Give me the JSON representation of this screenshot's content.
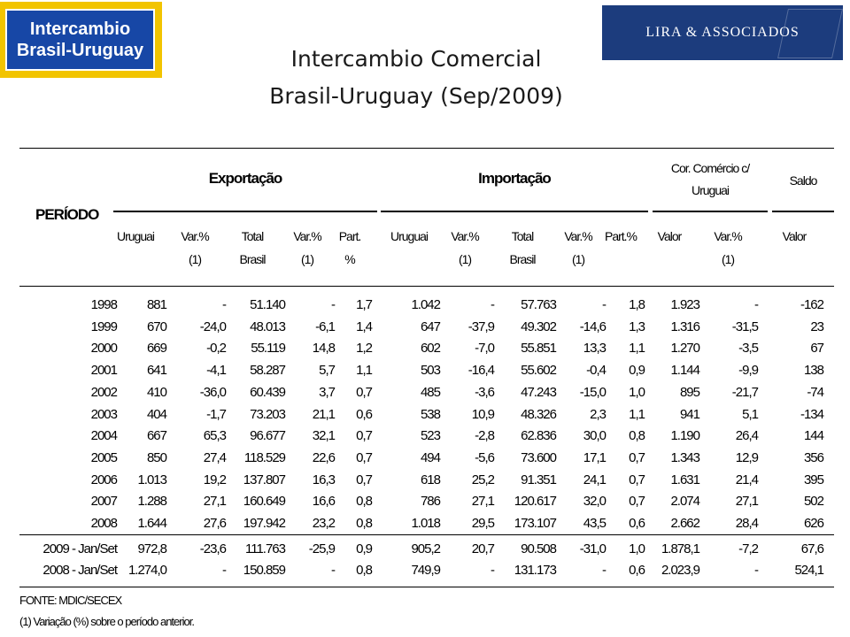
{
  "header": {
    "logo_left_line1": "Intercambio",
    "logo_left_line2": "Brasil-Uruguay",
    "logo_right": "LIRA & ASSOCIADOS",
    "title_line1": "Intercambio Comercial",
    "title_line2": "Brasil-Uruguay  (Sep/2009)"
  },
  "table": {
    "groups": {
      "periodo": "PERÍODO",
      "exportacao": "Exportação",
      "importacao": "Importação",
      "corrente_line1": "Cor. Comércio c/",
      "corrente_line2": "Uruguai",
      "saldo": "Saldo"
    },
    "subheaders": [
      [
        "Uruguai",
        ""
      ],
      [
        "Var.%",
        "(1)"
      ],
      [
        "Total",
        "Brasil"
      ],
      [
        "Var.%",
        "(1)"
      ],
      [
        "Part.",
        "%"
      ],
      [
        "Uruguai",
        ""
      ],
      [
        "Var.%",
        "(1)"
      ],
      [
        "Total",
        "Brasil"
      ],
      [
        "Var.%",
        "(1)"
      ],
      [
        "Part.%",
        ""
      ],
      [
        "Valor",
        ""
      ],
      [
        "Var.%",
        "(1)"
      ],
      [
        "Valor",
        ""
      ]
    ],
    "rows": [
      [
        "1998",
        "881",
        "-",
        "51.140",
        "-",
        "1,7",
        "1.042",
        "-",
        "57.763",
        "-",
        "1,8",
        "1.923",
        "-",
        "-162"
      ],
      [
        "1999",
        "670",
        "-24,0",
        "48.013",
        "-6,1",
        "1,4",
        "647",
        "-37,9",
        "49.302",
        "-14,6",
        "1,3",
        "1.316",
        "-31,5",
        "23"
      ],
      [
        "2000",
        "669",
        "-0,2",
        "55.119",
        "14,8",
        "1,2",
        "602",
        "-7,0",
        "55.851",
        "13,3",
        "1,1",
        "1.270",
        "-3,5",
        "67"
      ],
      [
        "2001",
        "641",
        "-4,1",
        "58.287",
        "5,7",
        "1,1",
        "503",
        "-16,4",
        "55.602",
        "-0,4",
        "0,9",
        "1.144",
        "-9,9",
        "138"
      ],
      [
        "2002",
        "410",
        "-36,0",
        "60.439",
        "3,7",
        "0,7",
        "485",
        "-3,6",
        "47.243",
        "-15,0",
        "1,0",
        "895",
        "-21,7",
        "-74"
      ],
      [
        "2003",
        "404",
        "-1,7",
        "73.203",
        "21,1",
        "0,6",
        "538",
        "10,9",
        "48.326",
        "2,3",
        "1,1",
        "941",
        "5,1",
        "-134"
      ],
      [
        "2004",
        "667",
        "65,3",
        "96.677",
        "32,1",
        "0,7",
        "523",
        "-2,8",
        "62.836",
        "30,0",
        "0,8",
        "1.190",
        "26,4",
        "144"
      ],
      [
        "2005",
        "850",
        "27,4",
        "118.529",
        "22,6",
        "0,7",
        "494",
        "-5,6",
        "73.600",
        "17,1",
        "0,7",
        "1.343",
        "12,9",
        "356"
      ],
      [
        "2006",
        "1.013",
        "19,2",
        "137.807",
        "16,3",
        "0,7",
        "618",
        "25,2",
        "91.351",
        "24,1",
        "0,7",
        "1.631",
        "21,4",
        "395"
      ],
      [
        "2007",
        "1.288",
        "27,1",
        "160.649",
        "16,6",
        "0,8",
        "786",
        "27,1",
        "120.617",
        "32,0",
        "0,7",
        "2.074",
        "27,1",
        "502"
      ],
      [
        "2008",
        "1.644",
        "27,6",
        "197.942",
        "23,2",
        "0,8",
        "1.018",
        "29,5",
        "173.107",
        "43,5",
        "0,6",
        "2.662",
        "28,4",
        "626"
      ]
    ],
    "period_rows": [
      [
        "2009 - Jan/Set",
        "972,8",
        "-23,6",
        "111.763",
        "-25,9",
        "0,9",
        "905,2",
        "20,7",
        "90.508",
        "-31,0",
        "1,0",
        "1.878,1",
        "-7,2",
        "67,6"
      ],
      [
        "2008 - Jan/Set",
        "1.274,0",
        "-",
        "150.859",
        "-",
        "0,8",
        "749,9",
        "-",
        "131.173",
        "-",
        "0,6",
        "2.023,9",
        "-",
        "524,1"
      ]
    ]
  },
  "footer": {
    "source": "FONTE: MDIC/SECEX",
    "note": "(1) Variação (%) sobre o período anterior."
  }
}
